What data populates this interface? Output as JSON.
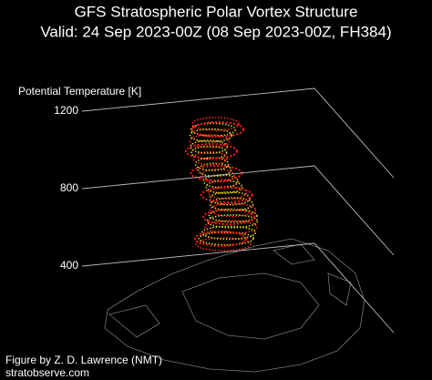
{
  "chart_data": {
    "type": "vortex3d",
    "title": "GFS Stratospheric Polar Vortex Structure",
    "subtitle": "Valid: 24 Sep 2023-00Z  (08 Sep 2023-00Z, FH384)",
    "zlabel": "Potential Temperature [K]",
    "zlim": [
      400,
      1200
    ],
    "zticks": [
      400,
      800,
      1200
    ],
    "credit": "Figure by Z. D. Lawrence (NMT)",
    "source": "stratobserve.com"
  }
}
